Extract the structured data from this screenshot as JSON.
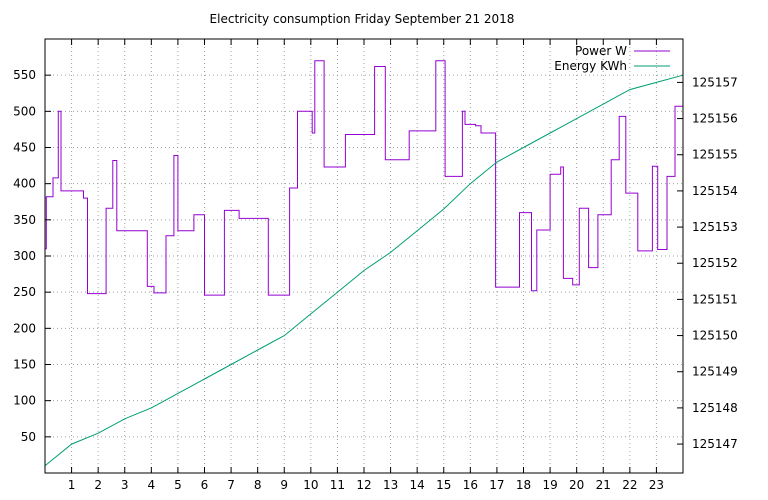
{
  "chart_data": {
    "type": "line",
    "title": "Electricity consumption Friday September 21 2018",
    "xlabel": "",
    "ylabel": "",
    "y2label": "",
    "xlim": [
      0,
      24
    ],
    "ylim": [
      0,
      600
    ],
    "y2lim": [
      125146.2,
      125158.2
    ],
    "grid": true,
    "legend": "top-right",
    "x_ticks": [
      1,
      2,
      3,
      4,
      5,
      6,
      7,
      8,
      9,
      10,
      11,
      12,
      13,
      14,
      15,
      16,
      17,
      18,
      19,
      20,
      21,
      22,
      23
    ],
    "y_ticks": [
      50,
      100,
      150,
      200,
      250,
      300,
      350,
      400,
      450,
      500,
      550
    ],
    "y2_ticks": [
      125147,
      125148,
      125149,
      125150,
      125151,
      125152,
      125153,
      125154,
      125155,
      125156,
      125157
    ],
    "series": [
      {
        "name": "Power W",
        "axis": "left",
        "color": "#9400d3",
        "step": true,
        "x": [
          0,
          0.05,
          0.3,
          0.5,
          0.6,
          1.45,
          1.6,
          2.3,
          2.55,
          2.7,
          3.85,
          4.1,
          4.55,
          4.85,
          5,
          5.6,
          6,
          6.75,
          7.3,
          8.4,
          9.2,
          9.5,
          9.65,
          10.05,
          10.15,
          10.5,
          11.3,
          11.45,
          12.4,
          12.8,
          13.6,
          13.7,
          14.7,
          15.05,
          15.7,
          15.8,
          16.2,
          16.4,
          16.95,
          17.2,
          17.85,
          18.3,
          18.5,
          19,
          19.4,
          19.5,
          19.85,
          20.1,
          20.45,
          20.8,
          21.3,
          21.6,
          21.85,
          22.3,
          22.85,
          23.05,
          23.4,
          23.7,
          24
        ],
        "y": [
          310,
          382,
          408,
          500,
          390,
          380,
          248,
          366,
          432,
          335,
          258,
          249,
          328,
          439,
          335,
          357,
          246,
          363,
          352,
          246,
          394,
          500,
          500,
          470,
          570,
          423,
          468,
          468,
          562,
          433,
          433,
          473,
          570,
          410,
          500,
          482,
          480,
          470,
          257,
          257,
          360,
          252,
          336,
          413,
          423,
          269,
          260,
          366,
          284,
          357,
          433,
          493,
          387,
          307,
          424,
          309,
          410,
          507,
          490
        ]
      },
      {
        "name": "Energy KWh",
        "axis": "right",
        "color": "#009e73",
        "step": false,
        "x": [
          0,
          1,
          2,
          3,
          4,
          5,
          6,
          7,
          8,
          9,
          10,
          11,
          12,
          13,
          14,
          15,
          16,
          17,
          18,
          19,
          20,
          21,
          22,
          23,
          24
        ],
        "y": [
          125146.4,
          125147.0,
          125147.3,
          125147.7,
          125148.0,
          125148.4,
          125148.8,
          125149.2,
          125149.6,
          125150.0,
          125150.6,
          125151.2,
          125151.8,
          125152.3,
          125152.9,
          125153.5,
          125154.2,
          125154.8,
          125155.2,
          125155.6,
          125156.0,
          125156.4,
          125156.8,
          125157.0,
          125157.2
        ]
      }
    ]
  }
}
